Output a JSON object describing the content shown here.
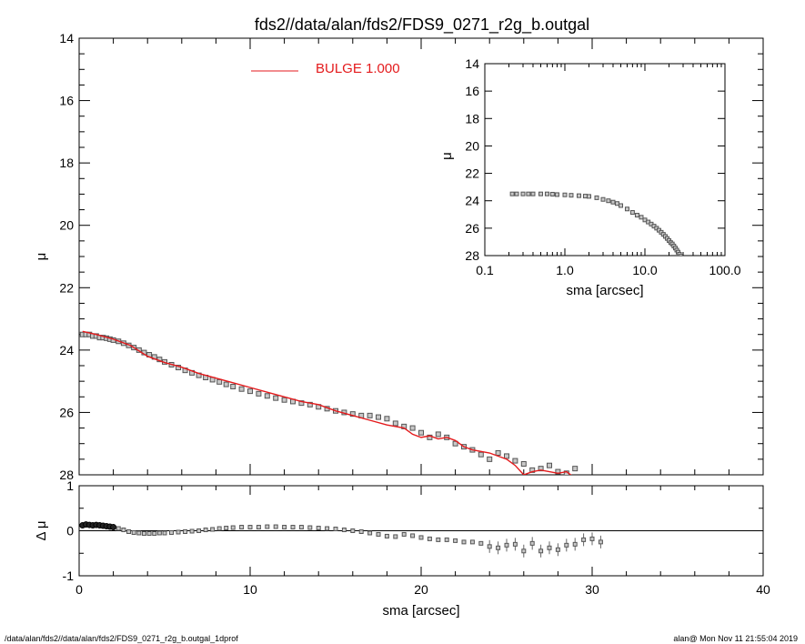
{
  "title": "fds2//data/alan/fds2/FDS9_0271_r2g_b.outgal",
  "footer": {
    "left": "/data/alan/fds2//data/alan/fds2/FDS9_0271_r2g_b.outgal_1dprof",
    "right": "alan@  Mon Nov 11 21:55:04 2019"
  },
  "colors": {
    "model": "#e41a1c",
    "data_fill": "#c8c8c8",
    "data_edge": "#555555",
    "axis": "#000000"
  },
  "chart_data": [
    {
      "type": "scatter",
      "panel": "main",
      "xlabel": "",
      "ylabel": "μ",
      "xlim": [
        0,
        40
      ],
      "ylim": [
        28,
        14
      ],
      "y_inverted": true,
      "yticks": [
        "14",
        "16",
        "18",
        "20",
        "22",
        "24",
        "26",
        "28"
      ],
      "legend": {
        "position": "top-center",
        "entries": [
          {
            "label": "BULGE  1.000",
            "color": "#e41a1c"
          }
        ]
      },
      "series": [
        {
          "kind": "points",
          "x": [
            0.2,
            0.4,
            0.6,
            0.8,
            1.0,
            1.2,
            1.4,
            1.6,
            1.8,
            2.0,
            2.3,
            2.6,
            2.9,
            3.2,
            3.5,
            3.8,
            4.1,
            4.4,
            4.7,
            5.0,
            5.4,
            5.8,
            6.2,
            6.6,
            7.0,
            7.4,
            7.8,
            8.2,
            8.6,
            9.0,
            9.5,
            10.0,
            10.5,
            11.0,
            11.5,
            12.0,
            12.5,
            13.0,
            13.5,
            14.0,
            14.5,
            15.0,
            15.5,
            16.0,
            16.5,
            17.0,
            17.5,
            18.0,
            18.5,
            19.0,
            19.5,
            20.0,
            20.5,
            21.0,
            21.5,
            22.0,
            22.5,
            23.0,
            23.5,
            24.0,
            24.5,
            25.0,
            25.5,
            26.0,
            26.5,
            27.0,
            27.5,
            28.0,
            28.5,
            29.0
          ],
          "y": [
            23.5,
            23.5,
            23.5,
            23.55,
            23.55,
            23.6,
            23.6,
            23.62,
            23.65,
            23.68,
            23.72,
            23.78,
            23.85,
            23.92,
            24.0,
            24.08,
            24.15,
            24.22,
            24.3,
            24.38,
            24.47,
            24.56,
            24.65,
            24.73,
            24.81,
            24.88,
            24.95,
            25.02,
            25.1,
            25.17,
            25.25,
            25.32,
            25.4,
            25.47,
            25.54,
            25.6,
            25.65,
            25.7,
            25.75,
            25.82,
            25.88,
            25.95,
            26.0,
            26.05,
            26.1,
            26.1,
            26.15,
            26.2,
            26.35,
            26.45,
            26.5,
            26.65,
            26.8,
            26.7,
            26.8,
            27.0,
            27.1,
            27.2,
            27.35,
            27.5,
            27.3,
            27.4,
            27.55,
            27.65,
            27.85,
            27.8,
            27.7,
            27.9,
            27.95,
            27.8
          ]
        },
        {
          "kind": "line",
          "name": "BULGE  1.000",
          "x": [
            0.2,
            1.0,
            2.0,
            3.0,
            4.0,
            5.0,
            6.0,
            7.0,
            8.0,
            9.0,
            10.0,
            11.0,
            12.0,
            13.0,
            14.0,
            15.0,
            16.0,
            17.0,
            18.0,
            19.0,
            19.5,
            20.0,
            20.5,
            21.0,
            21.5,
            22.0,
            22.5,
            23.0,
            24.0,
            25.0,
            25.5,
            26.0,
            26.5,
            27.0,
            27.5,
            28.0,
            28.5,
            29.0
          ],
          "y": [
            23.4,
            23.5,
            23.65,
            23.85,
            24.2,
            24.4,
            24.55,
            24.75,
            24.9,
            25.05,
            25.2,
            25.35,
            25.5,
            25.65,
            25.75,
            25.95,
            26.1,
            26.25,
            26.4,
            26.5,
            26.7,
            26.8,
            26.75,
            26.85,
            26.8,
            26.9,
            27.1,
            27.2,
            27.3,
            27.5,
            27.7,
            28.0,
            27.9,
            27.85,
            27.9,
            27.95,
            27.9,
            28.1
          ]
        }
      ]
    },
    {
      "type": "scatter",
      "panel": "residual",
      "xlabel": "sma [arcsec]",
      "ylabel": "Δ μ",
      "xlim": [
        0,
        40
      ],
      "ylim": [
        -1,
        1
      ],
      "xticks": [
        "0",
        "10",
        "20",
        "30",
        "40"
      ],
      "yticks": [
        "1",
        "0",
        "-1"
      ],
      "zero_line": true,
      "series": [
        {
          "kind": "points",
          "x": [
            0.2,
            0.4,
            0.6,
            0.8,
            1.0,
            1.2,
            1.4,
            1.6,
            1.8,
            2.0,
            2.3,
            2.6,
            2.9,
            3.2,
            3.5,
            3.8,
            4.1,
            4.4,
            4.7,
            5.0,
            5.4,
            5.8,
            6.2,
            6.6,
            7.0,
            7.4,
            7.8,
            8.2,
            8.6,
            9.0,
            9.5,
            10.0,
            10.5,
            11.0,
            11.5,
            12.0,
            12.5,
            13.0,
            13.5,
            14.0,
            14.5,
            15.0,
            15.5,
            16.0,
            16.5,
            17.0,
            17.5,
            18.0,
            18.5,
            19.0,
            19.5,
            20.0,
            20.5,
            21.0,
            21.5,
            22.0,
            22.5,
            23.0,
            23.5,
            24.0,
            24.5,
            25.0,
            25.5,
            26.0,
            26.5,
            27.0,
            27.5,
            28.0,
            28.5,
            29.0,
            29.5,
            30.0,
            30.5
          ],
          "y": [
            0.12,
            0.14,
            0.13,
            0.12,
            0.13,
            0.12,
            0.11,
            0.1,
            0.09,
            0.08,
            0.05,
            0.02,
            -0.02,
            -0.04,
            -0.05,
            -0.06,
            -0.06,
            -0.06,
            -0.05,
            -0.05,
            -0.04,
            -0.03,
            -0.02,
            -0.01,
            0.0,
            0.02,
            0.03,
            0.05,
            0.06,
            0.07,
            0.08,
            0.08,
            0.08,
            0.09,
            0.09,
            0.08,
            0.08,
            0.08,
            0.07,
            0.06,
            0.05,
            0.04,
            0.02,
            0.0,
            -0.02,
            -0.05,
            -0.08,
            -0.12,
            -0.13,
            -0.08,
            -0.11,
            -0.15,
            -0.18,
            -0.2,
            -0.2,
            -0.22,
            -0.25,
            -0.25,
            -0.28,
            -0.35,
            -0.38,
            -0.32,
            -0.3,
            -0.45,
            -0.28,
            -0.45,
            -0.38,
            -0.42,
            -0.32,
            -0.3,
            -0.2,
            -0.18,
            -0.25
          ],
          "dark_until_x": 2.0
        }
      ]
    },
    {
      "type": "scatter",
      "panel": "inset",
      "xlabel": "sma [arcsec]",
      "ylabel": "μ",
      "xscale": "log",
      "xlim": [
        0.1,
        100.0
      ],
      "ylim": [
        28,
        14
      ],
      "y_inverted": true,
      "xticks": [
        "0.1",
        "1.0",
        "10.0",
        "100.0"
      ],
      "yticks": [
        "14",
        "16",
        "18",
        "20",
        "22",
        "24",
        "26",
        "28"
      ],
      "series": [
        {
          "kind": "points",
          "x": [
            0.22,
            0.25,
            0.3,
            0.35,
            0.4,
            0.5,
            0.6,
            0.7,
            0.8,
            1.0,
            1.2,
            1.5,
            1.8,
            2.0,
            2.5,
            3.0,
            3.5,
            4.0,
            4.5,
            5.0,
            6.0,
            7.0,
            8.0,
            9.0,
            10.0,
            11.0,
            12.0,
            13.0,
            14.0,
            15.0,
            16.0,
            17.0,
            18.0,
            19.0,
            20.0,
            21.0,
            22.0,
            23.0,
            24.0,
            25.0,
            26.0,
            27.0,
            28.0
          ],
          "y": [
            23.5,
            23.5,
            23.5,
            23.5,
            23.5,
            23.5,
            23.5,
            23.52,
            23.55,
            23.57,
            23.6,
            23.63,
            23.66,
            23.68,
            23.78,
            23.9,
            24.0,
            24.1,
            24.2,
            24.35,
            24.6,
            24.85,
            25.05,
            25.2,
            25.4,
            25.55,
            25.7,
            25.85,
            26.0,
            26.15,
            26.3,
            26.45,
            26.6,
            26.75,
            26.9,
            27.05,
            27.15,
            27.3,
            27.45,
            27.6,
            27.75,
            27.9,
            28.05
          ]
        }
      ]
    }
  ]
}
